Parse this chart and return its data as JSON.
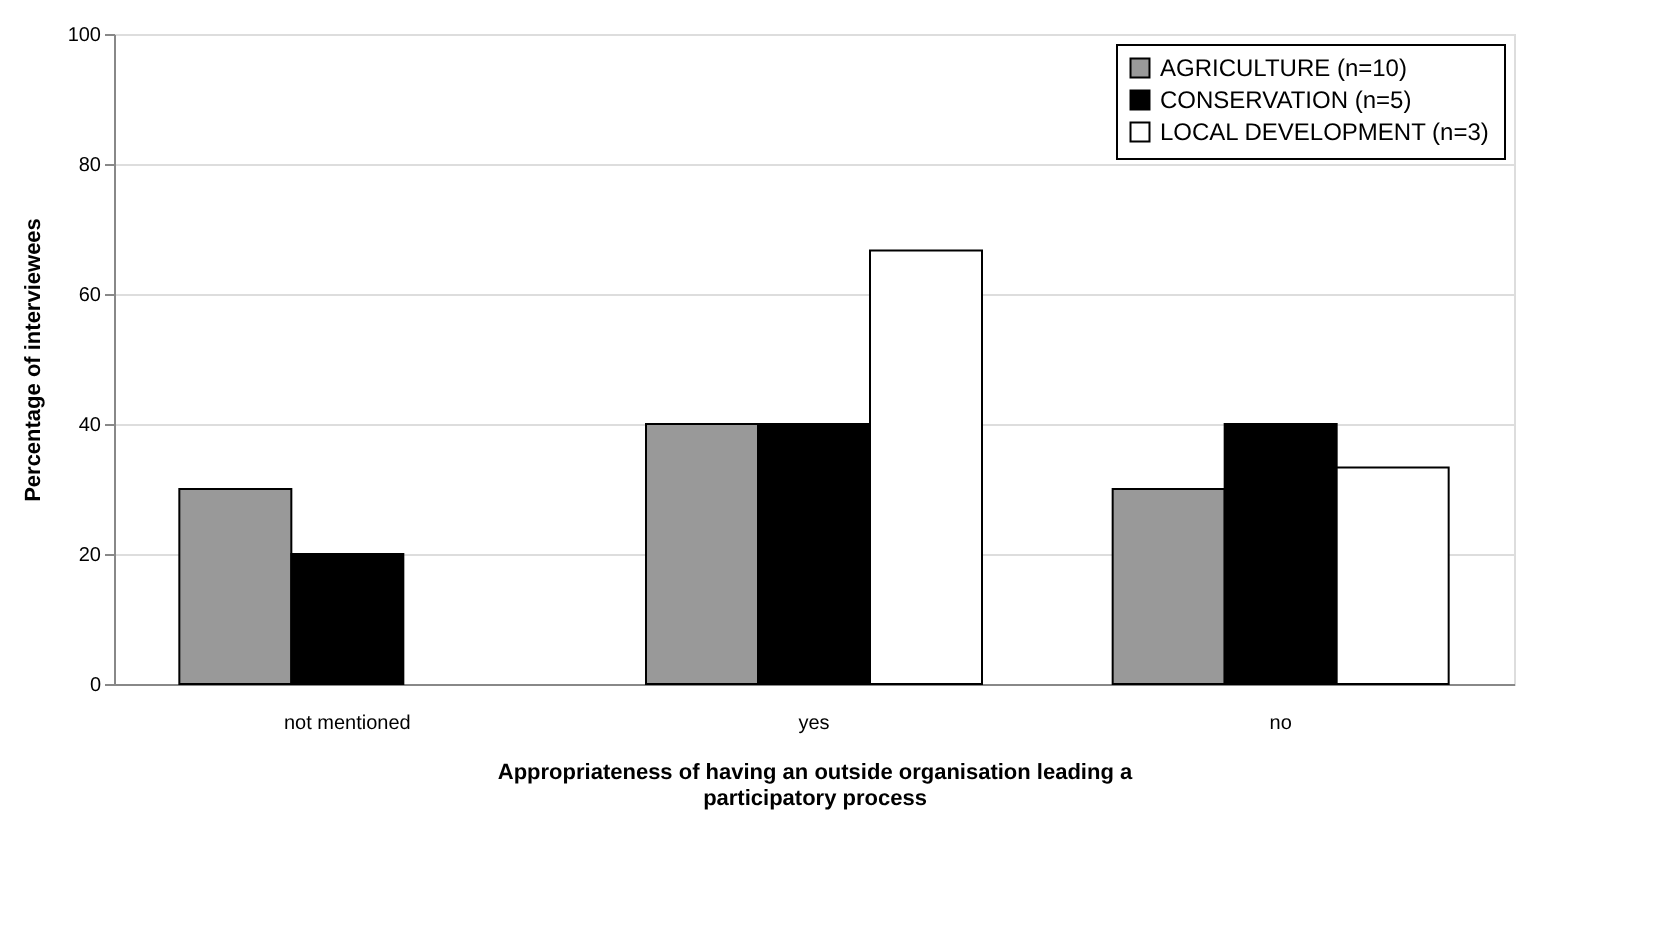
{
  "chart_data": {
    "type": "bar",
    "xlabel": "Appropriateness of having an outside organisation leading a participatory process",
    "ylabel": "Percentage of interviewees",
    "categories": [
      "not mentioned",
      "yes",
      "no"
    ],
    "series": [
      {
        "name": "AGRICULTURE (n=10)",
        "color": "#999999",
        "values": [
          30,
          40,
          30
        ]
      },
      {
        "name": "CONSERVATION (n=5)",
        "color": "#000000",
        "values": [
          20,
          40,
          40
        ]
      },
      {
        "name": "LOCAL DEVELOPMENT (n=3)",
        "color": "#ffffff",
        "values": [
          null,
          66.7,
          33.3
        ]
      }
    ],
    "ylim": [
      0,
      100
    ],
    "yticks": [
      0,
      20,
      40,
      60,
      80,
      100
    ],
    "grid": "y",
    "legend": "top right"
  }
}
